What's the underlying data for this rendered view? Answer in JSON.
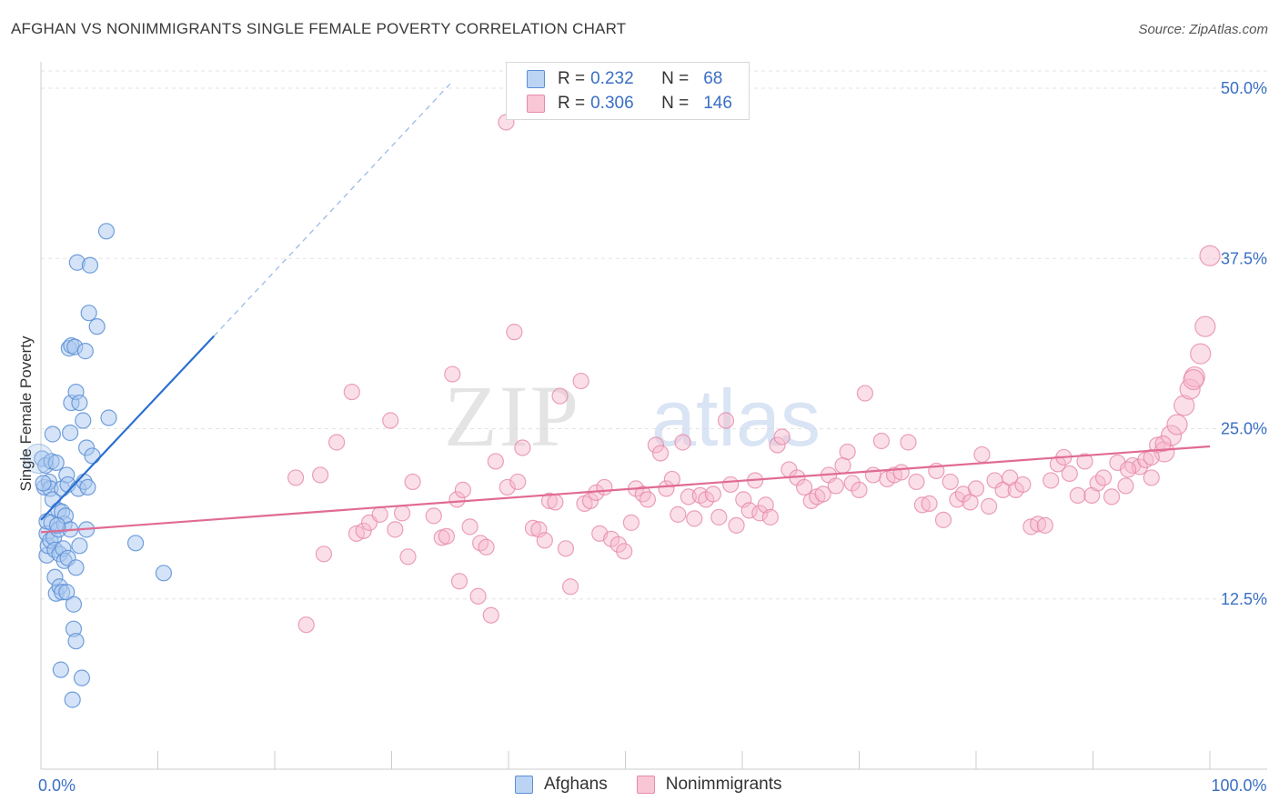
{
  "header": {
    "title": "AFGHAN VS NONIMMIGRANTS SINGLE FEMALE POVERTY CORRELATION CHART",
    "source": "Source: ZipAtlas.com"
  },
  "legend_top": {
    "rows": [
      {
        "r_label": "R =",
        "r_value": "0.232",
        "n_label": "N =",
        "n_value": "68"
      },
      {
        "r_label": "R =",
        "r_value": "0.306",
        "n_label": "N =",
        "n_value": "146"
      }
    ]
  },
  "legend_bottom": {
    "items": [
      {
        "label": "Afghans"
      },
      {
        "label": "Nonimmigrants"
      }
    ]
  },
  "colors": {
    "blue_fill": "#a9c8ef",
    "blue_stroke": "#5b8fd6",
    "blue_line": "#2a6fd0",
    "pink_fill": "#f6b8cb",
    "pink_stroke": "#e68aa8",
    "pink_line": "#e06b93",
    "axis_label": "#3a6fc4"
  },
  "watermark": {
    "part1": "ZIP",
    "part2": "atlas"
  },
  "chart_data": {
    "type": "scatter",
    "title": "AFGHAN VS NONIMMIGRANTS SINGLE FEMALE POVERTY CORRELATION CHART",
    "xlabel": "",
    "ylabel": "Single Female Poverty",
    "xlim": [
      0,
      100
    ],
    "ylim": [
      0,
      52.5
    ],
    "x_tick_labels": [
      {
        "value": 0,
        "label": "0.0%"
      },
      {
        "value": 100,
        "label": "100.0%"
      }
    ],
    "y_tick_labels": [
      {
        "value": 12.5,
        "label": "12.5%"
      },
      {
        "value": 25,
        "label": "25.0%"
      },
      {
        "value": 37.5,
        "label": "37.5%"
      },
      {
        "value": 50,
        "label": "50.0%"
      }
    ],
    "series": [
      {
        "name": "Afghans",
        "R": 0.232,
        "N": 68,
        "trend": {
          "x0": 0,
          "y0": 18.3,
          "x1": 14.8,
          "y1": 31.8,
          "dash_to_x": 35.2,
          "dash_to_y": 50.5
        },
        "points": [
          [
            0.1,
            22.8
          ],
          [
            0.3,
            20.7
          ],
          [
            0.4,
            22.3
          ],
          [
            0.5,
            17.3
          ],
          [
            0.5,
            18.2
          ],
          [
            0.5,
            15.7
          ],
          [
            0.6,
            16.4
          ],
          [
            0.7,
            21.1
          ],
          [
            0.8,
            20.6
          ],
          [
            0.8,
            16.8
          ],
          [
            0.9,
            22.6
          ],
          [
            0.9,
            18.1
          ],
          [
            1.0,
            24.6
          ],
          [
            1.0,
            19.8
          ],
          [
            1.1,
            17.0
          ],
          [
            1.2,
            16.1
          ],
          [
            1.2,
            14.1
          ],
          [
            1.3,
            22.5
          ],
          [
            1.3,
            12.9
          ],
          [
            1.5,
            19.0
          ],
          [
            1.5,
            17.6
          ],
          [
            1.6,
            15.8
          ],
          [
            1.6,
            13.4
          ],
          [
            1.7,
            7.3
          ],
          [
            1.8,
            20.6
          ],
          [
            1.8,
            18.9
          ],
          [
            1.8,
            13.0
          ],
          [
            1.9,
            16.2
          ],
          [
            2.0,
            18.0
          ],
          [
            2.0,
            15.3
          ],
          [
            2.1,
            18.6
          ],
          [
            2.2,
            21.6
          ],
          [
            2.2,
            13.0
          ],
          [
            2.3,
            15.5
          ],
          [
            2.3,
            20.9
          ],
          [
            2.4,
            30.9
          ],
          [
            2.5,
            24.7
          ],
          [
            2.5,
            17.6
          ],
          [
            2.6,
            31.1
          ],
          [
            2.6,
            26.9
          ],
          [
            2.7,
            5.1
          ],
          [
            2.8,
            10.3
          ],
          [
            2.8,
            12.1
          ],
          [
            2.9,
            31.0
          ],
          [
            3.0,
            9.4
          ],
          [
            3.0,
            27.7
          ],
          [
            3.0,
            14.8
          ],
          [
            3.1,
            37.2
          ],
          [
            3.2,
            20.6
          ],
          [
            3.3,
            16.4
          ],
          [
            3.3,
            26.9
          ],
          [
            3.5,
            6.7
          ],
          [
            3.6,
            25.6
          ],
          [
            3.7,
            21.1
          ],
          [
            3.8,
            30.7
          ],
          [
            3.9,
            17.6
          ],
          [
            3.9,
            23.6
          ],
          [
            4.0,
            20.7
          ],
          [
            4.1,
            33.5
          ],
          [
            4.2,
            37.0
          ],
          [
            4.4,
            23.0
          ],
          [
            4.8,
            32.5
          ],
          [
            5.6,
            39.5
          ],
          [
            5.8,
            25.8
          ],
          [
            8.1,
            16.6
          ],
          [
            10.5,
            14.4
          ],
          [
            0.2,
            21.0
          ],
          [
            1.4,
            17.9
          ]
        ]
      },
      {
        "name": "Nonimmigrants",
        "R": 0.306,
        "N": 146,
        "trend": {
          "x0": 0,
          "y0": 17.4,
          "x1": 100,
          "y1": 23.7
        },
        "points": [
          [
            21.8,
            21.4
          ],
          [
            22.7,
            10.6
          ],
          [
            23.9,
            21.6
          ],
          [
            24.2,
            15.8
          ],
          [
            25.3,
            24.0
          ],
          [
            26.6,
            27.7
          ],
          [
            27.0,
            17.3
          ],
          [
            27.6,
            17.5
          ],
          [
            28.1,
            18.1
          ],
          [
            29.0,
            18.7
          ],
          [
            29.9,
            25.6
          ],
          [
            30.3,
            17.6
          ],
          [
            30.9,
            18.8
          ],
          [
            31.4,
            15.6
          ],
          [
            31.8,
            21.1
          ],
          [
            33.6,
            18.6
          ],
          [
            34.3,
            17.0
          ],
          [
            34.7,
            17.1
          ],
          [
            35.2,
            29.0
          ],
          [
            35.6,
            19.8
          ],
          [
            35.8,
            13.8
          ],
          [
            36.1,
            20.5
          ],
          [
            36.7,
            17.8
          ],
          [
            37.4,
            12.7
          ],
          [
            37.6,
            16.6
          ],
          [
            38.1,
            16.3
          ],
          [
            38.5,
            11.3
          ],
          [
            38.9,
            22.6
          ],
          [
            39.8,
            47.5
          ],
          [
            39.9,
            20.7
          ],
          [
            40.5,
            32.1
          ],
          [
            40.8,
            21.1
          ],
          [
            41.2,
            23.6
          ],
          [
            42.1,
            17.7
          ],
          [
            42.6,
            17.6
          ],
          [
            43.1,
            16.8
          ],
          [
            43.5,
            19.7
          ],
          [
            44.0,
            19.6
          ],
          [
            44.4,
            27.4
          ],
          [
            44.9,
            16.2
          ],
          [
            45.3,
            13.4
          ],
          [
            46.2,
            28.5
          ],
          [
            46.5,
            19.5
          ],
          [
            47.0,
            19.7
          ],
          [
            47.5,
            20.3
          ],
          [
            47.8,
            17.3
          ],
          [
            48.2,
            20.7
          ],
          [
            48.8,
            16.9
          ],
          [
            49.4,
            16.5
          ],
          [
            49.9,
            16.0
          ],
          [
            50.5,
            18.1
          ],
          [
            50.9,
            20.6
          ],
          [
            51.5,
            20.2
          ],
          [
            51.9,
            19.8
          ],
          [
            52.6,
            23.8
          ],
          [
            53.0,
            23.2
          ],
          [
            53.5,
            20.6
          ],
          [
            54.0,
            21.3
          ],
          [
            54.5,
            18.7
          ],
          [
            54.9,
            24.0
          ],
          [
            55.4,
            20.0
          ],
          [
            55.9,
            18.4
          ],
          [
            56.4,
            20.1
          ],
          [
            56.9,
            19.8
          ],
          [
            57.5,
            20.2
          ],
          [
            58.0,
            18.5
          ],
          [
            58.6,
            25.6
          ],
          [
            59.0,
            20.9
          ],
          [
            59.5,
            17.9
          ],
          [
            60.1,
            19.8
          ],
          [
            60.6,
            19.0
          ],
          [
            61.1,
            21.2
          ],
          [
            61.5,
            18.8
          ],
          [
            62.0,
            19.4
          ],
          [
            62.4,
            18.5
          ],
          [
            63.0,
            23.8
          ],
          [
            63.4,
            24.4
          ],
          [
            64.0,
            22.0
          ],
          [
            64.7,
            21.4
          ],
          [
            65.3,
            20.7
          ],
          [
            65.9,
            19.7
          ],
          [
            66.4,
            20.0
          ],
          [
            66.9,
            20.2
          ],
          [
            67.4,
            21.6
          ],
          [
            68.0,
            20.8
          ],
          [
            68.6,
            22.3
          ],
          [
            69.0,
            23.3
          ],
          [
            69.4,
            21.0
          ],
          [
            70.0,
            20.5
          ],
          [
            70.5,
            27.6
          ],
          [
            71.2,
            21.6
          ],
          [
            71.9,
            24.1
          ],
          [
            72.4,
            21.3
          ],
          [
            73.0,
            21.6
          ],
          [
            73.6,
            21.8
          ],
          [
            74.2,
            24.0
          ],
          [
            74.9,
            21.1
          ],
          [
            75.4,
            19.4
          ],
          [
            76.0,
            19.5
          ],
          [
            76.6,
            21.9
          ],
          [
            77.2,
            18.3
          ],
          [
            77.8,
            21.1
          ],
          [
            78.4,
            19.8
          ],
          [
            78.9,
            20.2
          ],
          [
            79.5,
            19.6
          ],
          [
            80.0,
            20.6
          ],
          [
            80.5,
            23.1
          ],
          [
            81.1,
            19.3
          ],
          [
            81.6,
            21.2
          ],
          [
            82.3,
            20.5
          ],
          [
            82.9,
            21.4
          ],
          [
            83.4,
            20.5
          ],
          [
            84.0,
            20.9
          ],
          [
            84.7,
            17.8
          ],
          [
            85.3,
            18.0
          ],
          [
            85.9,
            17.9
          ],
          [
            86.4,
            21.2
          ],
          [
            87.0,
            22.4
          ],
          [
            87.5,
            22.9
          ],
          [
            88.0,
            21.7
          ],
          [
            88.7,
            20.1
          ],
          [
            89.3,
            22.6
          ],
          [
            89.9,
            20.1
          ],
          [
            90.4,
            21.0
          ],
          [
            90.9,
            21.4
          ],
          [
            91.6,
            20.0
          ],
          [
            92.1,
            22.5
          ],
          [
            92.8,
            20.8
          ],
          [
            93.4,
            22.3
          ],
          [
            94.0,
            22.2
          ],
          [
            94.5,
            22.7
          ],
          [
            95.0,
            21.4
          ],
          [
            95.5,
            23.8
          ],
          [
            96.1,
            23.3
          ],
          [
            96.7,
            24.5
          ],
          [
            97.2,
            25.3
          ],
          [
            97.8,
            26.7
          ],
          [
            98.3,
            27.9
          ],
          [
            98.7,
            28.8
          ],
          [
            99.2,
            30.5
          ],
          [
            99.6,
            32.5
          ],
          [
            100.0,
            37.7
          ],
          [
            93.0,
            22.0
          ],
          [
            96.0,
            23.9
          ],
          [
            98.6,
            28.6
          ],
          [
            95.0,
            22.9
          ]
        ]
      }
    ]
  }
}
